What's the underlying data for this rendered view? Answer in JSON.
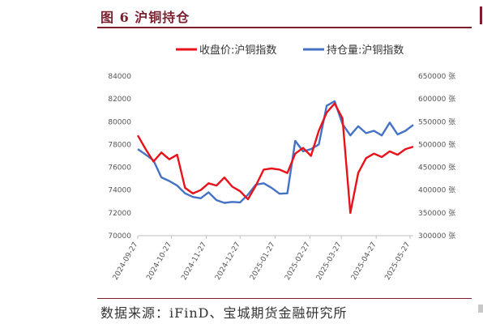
{
  "title": "图 6 沪铜持仓",
  "source": "数据来源：iFinD、宝城期货金融研究所",
  "colors": {
    "close": "#e8121b",
    "oi": "#4472c4",
    "accent": "#7b1f2e"
  },
  "chart_data": {
    "type": "line",
    "title": "图 6 沪铜持仓",
    "legend": [
      "收盘价:沪铜指数",
      "持仓量:沪铜指数"
    ],
    "legend_position": "top",
    "grid": false,
    "x": [
      "2024-09-27",
      "2024-10-04",
      "2024-10-11",
      "2024-10-18",
      "2024-10-25",
      "2024-11-01",
      "2024-11-08",
      "2024-11-15",
      "2024-11-22",
      "2024-11-29",
      "2024-12-06",
      "2024-12-13",
      "2024-12-20",
      "2024-12-27",
      "2025-01-03",
      "2025-01-10",
      "2025-01-17",
      "2025-01-24",
      "2025-01-31",
      "2025-02-07",
      "2025-02-14",
      "2025-02-21",
      "2025-02-28",
      "2025-03-07",
      "2025-03-14",
      "2025-03-21",
      "2025-03-28",
      "2025-04-04",
      "2025-04-11",
      "2025-04-18",
      "2025-04-25",
      "2025-05-02",
      "2025-05-09",
      "2025-05-16",
      "2025-05-23",
      "2025-05-30"
    ],
    "x_tick_labels": [
      "2024-09-27",
      "2024-10-27",
      "2024-11-27",
      "2024-12-27",
      "2025-01-27",
      "2025-02-27",
      "2025-03-27",
      "2025-04-27",
      "2025-05-27"
    ],
    "y_left": {
      "ticks": [
        70000,
        72000,
        74000,
        76000,
        78000,
        80000,
        82000,
        84000
      ],
      "range": [
        70000,
        84000
      ]
    },
    "y_right": {
      "ticks": [
        "300000 张",
        "350000 张",
        "400000 张",
        "450000 张",
        "500000 张",
        "550000 张",
        "600000 张",
        "650000 张"
      ],
      "range": [
        300000,
        650000
      ]
    },
    "series": [
      {
        "name": "收盘价:沪铜指数",
        "axis": "left",
        "color": "#e8121b",
        "values": [
          78800,
          77600,
          76500,
          77300,
          76700,
          77100,
          74200,
          73700,
          74000,
          74600,
          74400,
          75100,
          74300,
          73900,
          73200,
          74400,
          75800,
          75900,
          75800,
          75500,
          77200,
          77700,
          77000,
          79200,
          80800,
          81600,
          80300,
          72000,
          75500,
          76800,
          77200,
          76900,
          77400,
          77100,
          77600,
          77800
        ]
      },
      {
        "name": "持仓量:沪铜指数",
        "axis": "right",
        "color": "#4472c4",
        "values": [
          490000,
          478000,
          465000,
          428000,
          420000,
          410000,
          393000,
          385000,
          382000,
          395000,
          378000,
          372000,
          374000,
          373000,
          390000,
          412000,
          415000,
          405000,
          392000,
          393000,
          508000,
          485000,
          490000,
          500000,
          585000,
          595000,
          545000,
          520000,
          540000,
          525000,
          530000,
          520000,
          548000,
          522000,
          530000,
          543000
        ]
      }
    ]
  }
}
